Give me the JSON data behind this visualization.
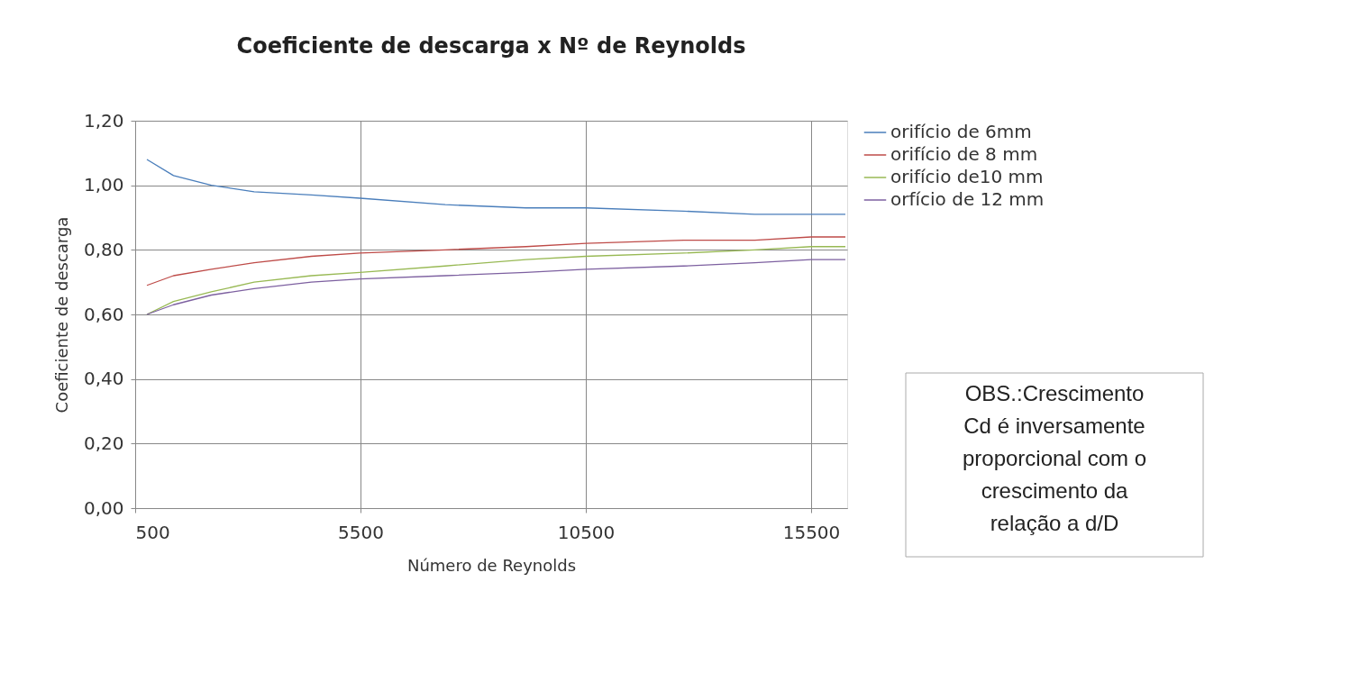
{
  "chart_data": {
    "type": "line",
    "title": "Coeficiente de descarga x Nº de Reynolds",
    "xlabel": "Número de Reynolds",
    "ylabel": "Coeficiente de descarga",
    "xlim": [
      500,
      16300
    ],
    "xticks": [
      500,
      5500,
      10500,
      15500
    ],
    "ylim": [
      0,
      1.2
    ],
    "yticks": [
      {
        "value": 0,
        "label": "0,00"
      },
      {
        "value": 0.2,
        "label": "0,20"
      },
      {
        "value": 0.4,
        "label": "0,40"
      },
      {
        "value": 0.6,
        "label": "0,60"
      },
      {
        "value": 0.8,
        "label": "0,80"
      },
      {
        "value": 1.0,
        "label": "1,00"
      },
      {
        "value": 1.2,
        "label": "1,20"
      }
    ],
    "x": [
      760,
      1350,
      2190,
      3140,
      4410,
      5490,
      7380,
      9170,
      10500,
      12670,
      14250,
      15500,
      16260
    ],
    "series": [
      {
        "name": "orifício de 6mm",
        "color": "#4a7ebb",
        "values": [
          1.08,
          1.03,
          1.0,
          0.98,
          0.97,
          0.96,
          0.94,
          0.93,
          0.93,
          0.92,
          0.91,
          0.91,
          0.91
        ]
      },
      {
        "name": "orifício de 8 mm",
        "color": "#be4b48",
        "values": [
          0.69,
          0.72,
          0.74,
          0.76,
          0.78,
          0.79,
          0.8,
          0.81,
          0.82,
          0.83,
          0.83,
          0.84,
          0.84
        ]
      },
      {
        "name": "orifício de10 mm",
        "color": "#98b954",
        "values": [
          0.6,
          0.64,
          0.67,
          0.7,
          0.72,
          0.73,
          0.75,
          0.77,
          0.78,
          0.79,
          0.8,
          0.81,
          0.81
        ]
      },
      {
        "name": "orfício de 12 mm",
        "color": "#7d60a0",
        "values": [
          0.6,
          0.63,
          0.66,
          0.68,
          0.7,
          0.71,
          0.72,
          0.73,
          0.74,
          0.75,
          0.76,
          0.77,
          0.77
        ]
      }
    ],
    "grid": true,
    "legend": "right",
    "marker": "none",
    "line_style": "solid",
    "annotations": [
      "OBS.:Crescimento\nCd  é inversamente\nproporcional com o\ncrescimento da\nrelação a d/D"
    ]
  }
}
